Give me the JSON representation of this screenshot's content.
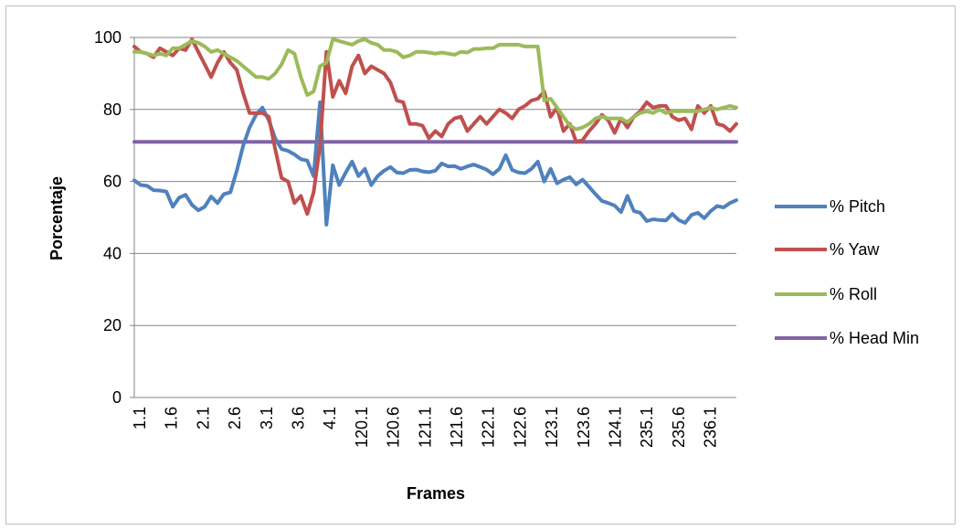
{
  "chart_data": {
    "type": "line",
    "xlabel": "Frames",
    "ylabel": "Porcentaje",
    "ylim": [
      0,
      100
    ],
    "yticks": [
      0,
      20,
      40,
      60,
      80,
      100
    ],
    "grid": "horizontal",
    "legend_position": "right",
    "x_tick_labels": [
      "1.1",
      "1.6",
      "2.1",
      "2.6",
      "3.1",
      "3.6",
      "4.1",
      "120.1",
      "120.6",
      "121.1",
      "121.6",
      "122.1",
      "122.6",
      "123.1",
      "123.6",
      "124.1",
      "235.1",
      "235.6",
      "236.1"
    ],
    "series": [
      {
        "name": "% Pitch",
        "color": "#4f81bd",
        "values": [
          60.3,
          59.0,
          58.8,
          57.6,
          57.5,
          57.2,
          53.0,
          55.5,
          56.3,
          53.5,
          52.0,
          53.0,
          55.8,
          54.0,
          56.5,
          57.0,
          63.0,
          70.0,
          75.0,
          78.5,
          80.5,
          77.0,
          72.0,
          69.0,
          68.5,
          67.5,
          66.2,
          65.8,
          61.5,
          82.0,
          48.0,
          64.5,
          59.0,
          62.5,
          65.5,
          61.5,
          63.5,
          59.0,
          61.5,
          63.0,
          64.0,
          62.5,
          62.3,
          63.2,
          63.3,
          62.8,
          62.6,
          63.0,
          65.0,
          64.2,
          64.3,
          63.5,
          64.2,
          64.7,
          64.0,
          63.3,
          62.0,
          63.5,
          67.3,
          63.2,
          62.5,
          62.3,
          63.5,
          65.5,
          60.0,
          63.5,
          59.5,
          60.5,
          61.2,
          59.2,
          60.5,
          58.5,
          56.5,
          54.6,
          54.0,
          53.3,
          51.5,
          56.0,
          51.8,
          51.3,
          49.0,
          49.5,
          49.3,
          49.2,
          51.0,
          49.3,
          48.5,
          50.7,
          51.3,
          49.8,
          51.8,
          53.2,
          52.8,
          54.0,
          54.8
        ]
      },
      {
        "name": "% Yaw",
        "color": "#c0504d",
        "values": [
          97.5,
          96.0,
          95.5,
          94.5,
          97.0,
          96.0,
          95.0,
          97.0,
          96.5,
          99.5,
          96.0,
          92.5,
          89.0,
          93.0,
          96.0,
          93.0,
          91.0,
          84.5,
          79.0,
          79.0,
          79.0,
          78.0,
          69.0,
          61.0,
          60.0,
          54.0,
          56.0,
          51.0,
          57.0,
          70.0,
          96.0,
          83.5,
          88.0,
          84.5,
          92.0,
          95.0,
          90.0,
          92.0,
          91.0,
          90.0,
          87.5,
          82.5,
          82.0,
          76.0,
          76.0,
          75.5,
          72.0,
          74.0,
          72.5,
          76.0,
          77.5,
          78.0,
          74.0,
          76.0,
          78.0,
          76.0,
          78.0,
          80.0,
          79.0,
          77.5,
          80.0,
          81.0,
          82.5,
          83.0,
          85.0,
          78.0,
          80.5,
          74.0,
          76.0,
          71.0,
          71.5,
          74.0,
          76.0,
          78.5,
          77.0,
          73.5,
          77.5,
          75.0,
          78.0,
          79.5,
          82.0,
          80.5,
          81.0,
          81.0,
          78.0,
          77.0,
          77.5,
          74.5,
          81.0,
          79.0,
          81.0,
          76.0,
          75.5,
          74.0,
          76.0
        ]
      },
      {
        "name": "% Roll",
        "color": "#9bbb59",
        "values": [
          96.0,
          96.0,
          95.5,
          95.0,
          95.5,
          95.0,
          97.0,
          97.0,
          98.0,
          99.0,
          98.5,
          97.5,
          96.0,
          96.5,
          95.5,
          94.5,
          93.5,
          92.0,
          90.5,
          89.0,
          89.0,
          88.5,
          90.0,
          92.5,
          96.5,
          95.5,
          89.0,
          84.0,
          85.0,
          92.0,
          93.0,
          99.5,
          99.0,
          98.5,
          98.0,
          99.0,
          99.5,
          98.5,
          98.0,
          96.5,
          96.5,
          96.0,
          94.5,
          95.0,
          96.0,
          96.0,
          95.8,
          95.5,
          95.8,
          95.5,
          95.2,
          96.0,
          95.8,
          96.8,
          96.8,
          97.0,
          97.0,
          98.0,
          98.0,
          98.0,
          98.0,
          97.5,
          97.5,
          97.5,
          82.5,
          83.0,
          80.5,
          78.0,
          75.5,
          74.5,
          75.0,
          76.0,
          77.5,
          78.0,
          77.5,
          77.5,
          77.5,
          76.5,
          78.0,
          79.0,
          79.5,
          79.0,
          80.0,
          79.0,
          79.5,
          79.5,
          79.5,
          79.5,
          79.5,
          80.0,
          80.5,
          80.0,
          80.5,
          81.0,
          80.5
        ]
      },
      {
        "name": "% Head Min",
        "color": "#8064a2",
        "values": [
          71.0,
          71.0
        ]
      }
    ]
  }
}
